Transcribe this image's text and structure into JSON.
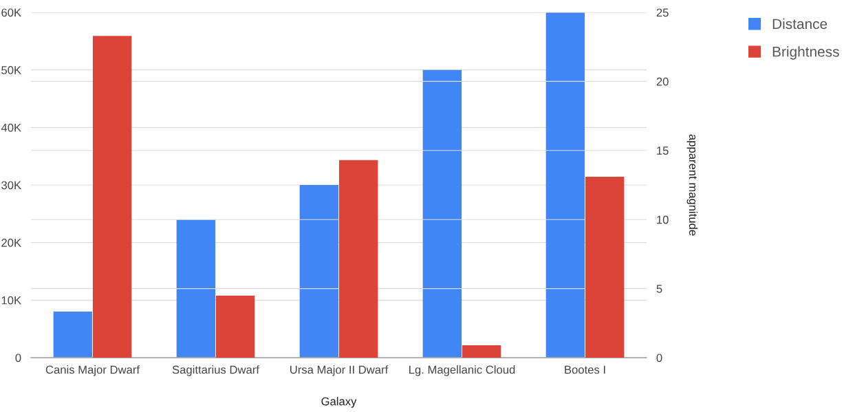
{
  "chart_data": {
    "type": "bar",
    "xlabel": "Galaxy",
    "y2label": "apparent magnitude",
    "categories": [
      "Canis Major Dwarf",
      "Sagittarius Dwarf",
      "Ursa Major II Dwarf",
      "Lg. Magellanic Cloud",
      "Bootes I"
    ],
    "series": [
      {
        "name": "Distance",
        "color": "#4285f4",
        "values": [
          8000,
          24000,
          30000,
          50000,
          60000
        ]
      },
      {
        "name": "Brightness",
        "color": "#db4437",
        "axis": "y2",
        "values": [
          23.3,
          4.5,
          14.3,
          0.9,
          13.1
        ]
      }
    ],
    "ylim": [
      0,
      60000
    ],
    "yticks": [
      {
        "value": 0,
        "label": "0"
      },
      {
        "value": 10000,
        "label": "10K"
      },
      {
        "value": 20000,
        "label": "20K"
      },
      {
        "value": 30000,
        "label": "30K"
      },
      {
        "value": 40000,
        "label": "40K"
      },
      {
        "value": 50000,
        "label": "50K"
      },
      {
        "value": 60000,
        "label": "60K"
      }
    ],
    "y2lim": [
      0,
      25
    ],
    "y2ticks": [
      0,
      5,
      10,
      15,
      20,
      25
    ],
    "grid": true,
    "legend": "top right"
  }
}
